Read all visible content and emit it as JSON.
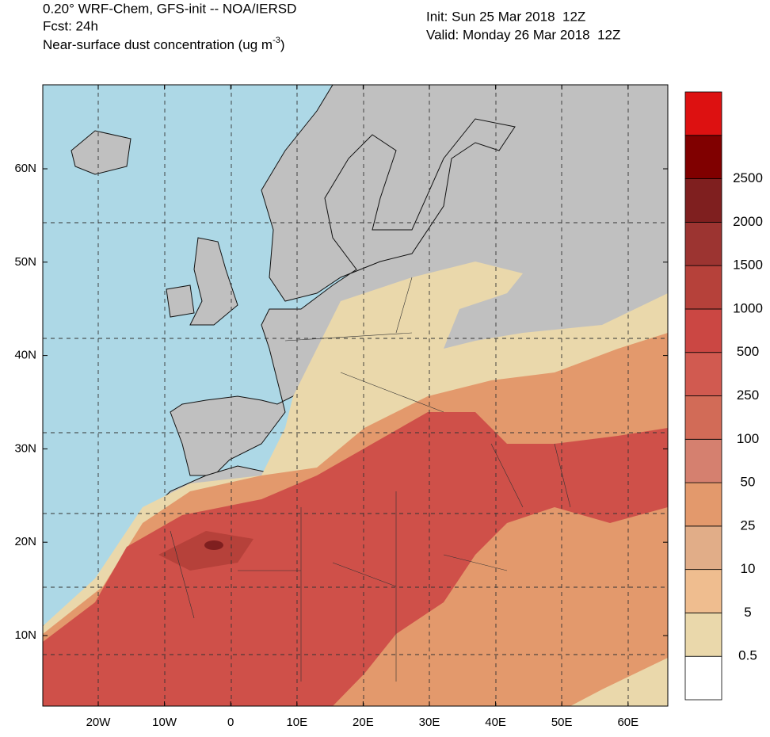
{
  "header": {
    "title": "0.20° WRF-Chem, GFS-init -- NOA/IERSD",
    "forecast": "Fcst: 24h",
    "field": {
      "text": "Near-surface dust concentration (ug m",
      "exponent": "-3",
      "close": ")"
    },
    "init": "Init: Sun 25 Mar 2018  12Z",
    "valid": "Valid: Monday 26 Mar 2018  12Z"
  },
  "map": {
    "latitude_labels": [
      "60N",
      "50N",
      "40N",
      "30N",
      "20N",
      "10N"
    ],
    "longitude_labels": [
      "20W",
      "10W",
      "0",
      "10E",
      "20E",
      "30E",
      "40E",
      "50E",
      "60E"
    ]
  },
  "colorbar": {
    "levels": [
      0.5,
      5,
      10,
      25,
      50,
      100,
      250,
      500,
      1000,
      1500,
      2000,
      2500
    ],
    "colors": [
      "#ffffff",
      "#ead8ab",
      "#efbd8f",
      "#e1ad88",
      "#e3996c",
      "#d5806f",
      "#d26b57",
      "#d15a50",
      "#cb4743",
      "#b6413a",
      "#9c3431",
      "#7f1f1f",
      "#800000",
      "#dd1111"
    ]
  }
}
